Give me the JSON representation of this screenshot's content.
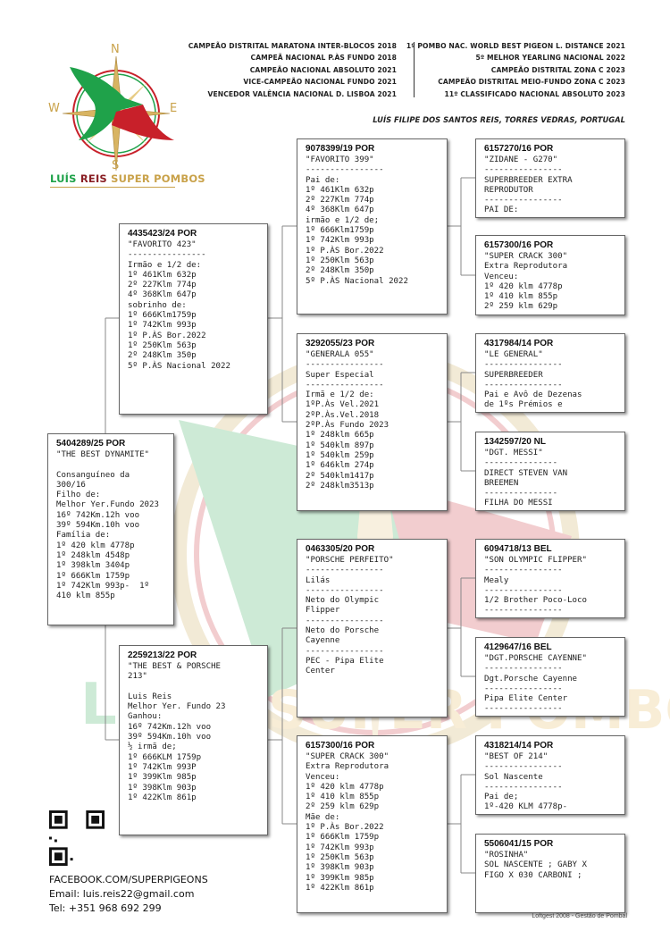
{
  "header": {
    "awards_left": [
      "CAMPEÃO DISTRITAL MARATONA INTER-BLOCOS 2018",
      "CAMPEÃ NACIONAL P.ÀS FUNDO 2018",
      "CAMPEÃO NACIONAL ABSOLUTO 2021",
      "VICE-CAMPEÃO NACIONAL FUNDO 2021",
      "VENCEDOR VALÊNCIA NACIONAL D. LISBOA 2021"
    ],
    "awards_right": [
      "1º POMBO NAC. WORLD BEST PIGEON L. DISTANCE 2021",
      "5º MELHOR YEARLING NACIONAL 2022",
      "CAMPEÃO DISTRITAL ZONA C 2023",
      "CAMPEÃO DISTRITAL MEIO-FUNDO ZONA C 2023",
      "11º CLASSIFICADO NACIONAL ABSOLUTO 2023"
    ],
    "owner": "LUÍS FILIPE DOS SANTOS REIS, TORRES VEDRAS, PORTUGAL"
  },
  "logo": {
    "compass": {
      "n": "N",
      "s": "S",
      "e": "E",
      "w": "W"
    },
    "text_1": "LUÍS",
    "text_2": "REIS",
    "text_3": "SUPER POMBOS",
    "colors": {
      "green": "#1fa24a",
      "red": "#c8202a",
      "gold": "#c9a24a"
    }
  },
  "pedigree": [
    {
      "ring": "5404289/25 POR",
      "lines": [
        "\"THE BEST DYNAMITE\"",
        "",
        "Consanguíneo da",
        "300/16",
        "Filho de:",
        "Melhor Yer.Fundo 2023",
        "16º 742Km.12h voo",
        "39º 594Km.10h voo",
        "Família de:",
        "1º 420 klm 4778p",
        "1º 248klm 4548p",
        "1º 398klm 3404p",
        "1º 666Klm 1759p",
        "1º 742Klm 993p-  1º",
        "410 klm 855p"
      ]
    },
    {
      "ring": "4435423/24 POR",
      "lines": [
        "\"FAVORITO 423\"",
        "----------------",
        "Irmão e 1/2 de:",
        "1º 461Klm 632p",
        "2º 227Klm 774p",
        "4º 368Klm 647p",
        "sobrinho de:",
        "1º 666Klm1759p",
        "1º 742Klm 993p",
        "1º P.ÀS Bor.2022",
        "1º 250Klm 563p",
        "2º 248Klm 350p",
        "5º P.ÀS Nacional 2022"
      ]
    },
    {
      "ring": "2259213/22 POR",
      "lines": [
        "\"THE BEST & PORSCHE",
        "213\"",
        "",
        "Luis Reis",
        "Melhor Yer. Fundo 23",
        "Ganhou:",
        "16º 742Km.12h voo",
        "39º 594Km.10h voo",
        "½ irmã de;",
        "1º 666KLM 1759p",
        "1º 742Klm 993P",
        "1º 399Klm 985p",
        "1º 398Klm 903p",
        "1º 422Klm 861p"
      ]
    },
    {
      "ring": "9078399/19 POR",
      "lines": [
        "\"FAVORITO 399\"",
        "----------------",
        "Pai de:",
        "1º 461Klm 632p",
        "2º 227Klm 774p",
        "4º 368Klm 647p",
        "irmão e 1/2 de;",
        "1º 666Klm1759p",
        "1º 742Klm 993p",
        "1º P.ÀS Bor.2022",
        "1º 250Klm 563p",
        "2º 248Klm 350p",
        "5º P.ÀS Nacional 2022"
      ]
    },
    {
      "ring": "3292055/23 POR",
      "lines": [
        "\"GENERALA 055\"",
        "----------------",
        "Super Especial",
        "----------------",
        "Irmã e 1/2 de:",
        "1ºP.Às Vel.2021",
        "2ºP.Às.Vel.2018",
        "2ºP.Às Fundo 2023",
        "1º 248klm 665p",
        "1º 540klm 897p",
        "1º 540klm 259p",
        "1º 646klm 274p",
        "2º 540klm1417p",
        "2º 248klm3513p"
      ]
    },
    {
      "ring": "0463305/20 POR",
      "lines": [
        "\"PORSCHE PERFEITO\"",
        "----------------",
        "Lilás",
        "----------------",
        "Neto do Olympic",
        "Flipper",
        "----------------",
        "Neto do Porsche",
        "Cayenne",
        "----------------",
        "PEC - Pipa Elite",
        "Center"
      ]
    },
    {
      "ring": "6157300/16 POR",
      "lines": [
        "\"SUPER CRACK 300\"",
        "Extra Reprodutora",
        "Venceu:",
        "1º 420 klm 4778p",
        "1º 410 klm 855p",
        "2º 259 klm 629p",
        "Mãe de:",
        "1º P.Às Bor.2022",
        "1º 666Klm 1759p",
        "1º 742Klm 993p",
        "1º 250Klm 563p",
        "1º 398Klm 903p",
        "1º 399Klm 985p",
        "1º 422Klm 861p"
      ]
    },
    {
      "ring": "6157270/16 POR",
      "lines": [
        "\"ZIDANE - G270\"",
        "----------------",
        "SUPERBREEDER EXTRA",
        "REPRODUTOR",
        "----------------",
        "PAI DE:"
      ]
    },
    {
      "ring": "6157300/16 POR",
      "lines": [
        "\"SUPER CRACK 300\"",
        "Extra Reprodutora",
        "Venceu:",
        "1º 420 klm 4778p",
        "1º 410 klm 855p",
        "2º 259 klm 629p"
      ]
    },
    {
      "ring": "4317984/14 POR",
      "lines": [
        "\"LE GENERAL\"",
        "----------------",
        "SUPERBREEDER",
        "----------------",
        "Pai e Avô de Dezenas",
        "de 1ºs Prémios e"
      ]
    },
    {
      "ring": "1342597/20 NL",
      "lines": [
        "\"DGT. MESSI\"",
        "---------------",
        "DIRECT STEVEN VAN",
        "BREEMEN",
        "---------------",
        "FILHA DO MESSI"
      ]
    },
    {
      "ring": "6094718/13 BEL",
      "lines": [
        "\"SON OLYMPIC FLIPPER\"",
        "----------------",
        "Mealy",
        "----------------",
        "1/2 Brother Poco-Loco",
        "----------------"
      ]
    },
    {
      "ring": "4129647/16 BEL",
      "lines": [
        "\"DGT.PORSCHE CAYENNE\"",
        "----------------",
        "Dgt.Porsche Cayenne",
        "----------------",
        "Pipa Elite Center",
        "----------------"
      ]
    },
    {
      "ring": "4318214/14 POR",
      "lines": [
        "\"BEST OF 214\"",
        "----------------",
        "Sol Nascente",
        "----------------",
        "Pai de;",
        "1º-420 KLM 4778p-"
      ]
    },
    {
      "ring": "5506041/15 POR",
      "lines": [
        "\"ROSINHA\"",
        "SOL NASCENTE ; GABY X",
        "FIGO X 030 CARBONI ;"
      ]
    }
  ],
  "contact": {
    "facebook": "FACEBOOK.COM/SUPERPIGEONS",
    "email": "Email: luis.reis22@gmail.com",
    "tel": "Tel: +351 968 692 299"
  },
  "footer": {
    "credit": "Loftgest 2008 - Gestão de Pombal"
  }
}
